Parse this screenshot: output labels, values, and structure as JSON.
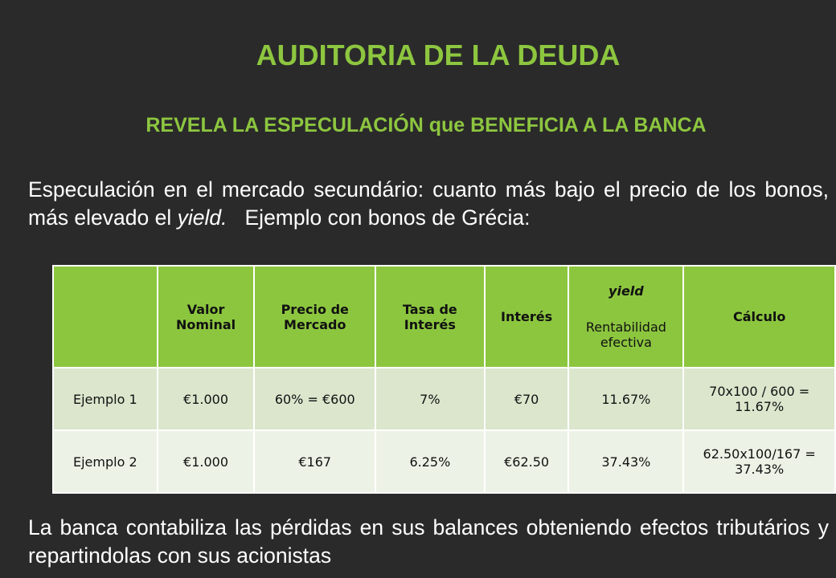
{
  "header": {
    "title": "AUDITORIA DE LA DEUDA",
    "subtitle": "REVELA LA ESPECULACIÓN que BENEFICIA A LA BANCA"
  },
  "intro": {
    "text_before": "Especulación en el mercado secundário: cuanto más bajo el precio de los bonos, más elevado el",
    "italic": "yield.",
    "text_after": "Ejemplo con bonos de Grécia:"
  },
  "table": {
    "headers": [
      "Valor Nominal",
      "Precio de Mercado",
      "Tasa de Interés",
      "Interés",
      {
        "italic": "yield",
        "text": "Rentabilidad efectiva"
      },
      "Cálculo"
    ],
    "rows": [
      [
        "Ejemplo 1",
        "€1.000",
        "60% = €600",
        "7%",
        "€70",
        "11.67%",
        "70x100 / 600 = 11.67%"
      ],
      [
        "Ejemplo 2",
        "€1.000",
        "€167",
        "6.25%",
        "€62.50",
        "37.43%",
        "62.50x100/167 = 37.43%"
      ]
    ]
  },
  "conclusion": {
    "text": "La banca contabiliza las pérdidas en sus balances obteniendo efectos tributários y repartindolas con sus acionistas"
  }
}
